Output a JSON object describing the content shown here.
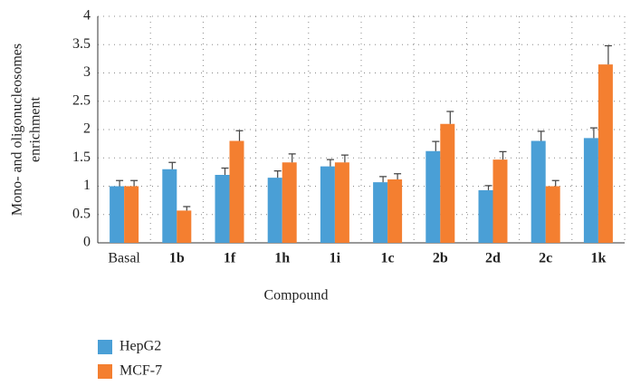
{
  "chart_data": {
    "type": "bar",
    "ylabel": [
      "Mono- and oligonucleosomes",
      "enrichment"
    ],
    "xlabel": "Compound",
    "categories": [
      "Basal",
      "1b",
      "1f",
      "1h",
      "1i",
      "1c",
      "2b",
      "2d",
      "2c",
      "1k"
    ],
    "series": [
      {
        "name": "HepG2",
        "color": "#4a9fd6",
        "values": [
          1.0,
          1.3,
          1.2,
          1.15,
          1.35,
          1.07,
          1.62,
          0.93,
          1.8,
          1.85
        ],
        "errors": [
          0.1,
          0.12,
          0.12,
          0.12,
          0.12,
          0.1,
          0.17,
          0.08,
          0.17,
          0.18
        ]
      },
      {
        "name": "MCF-7",
        "color": "#f47f30",
        "values": [
          1.0,
          0.57,
          1.8,
          1.42,
          1.42,
          1.12,
          2.1,
          1.47,
          1.0,
          3.15
        ],
        "errors": [
          0.1,
          0.07,
          0.18,
          0.15,
          0.13,
          0.1,
          0.22,
          0.14,
          0.1,
          0.33
        ]
      }
    ],
    "ylim": [
      0,
      4
    ],
    "yticks": [
      0,
      0.5,
      1,
      1.5,
      2,
      2.5,
      3,
      3.5,
      4
    ],
    "grid": true,
    "legend": "bottom-left"
  }
}
